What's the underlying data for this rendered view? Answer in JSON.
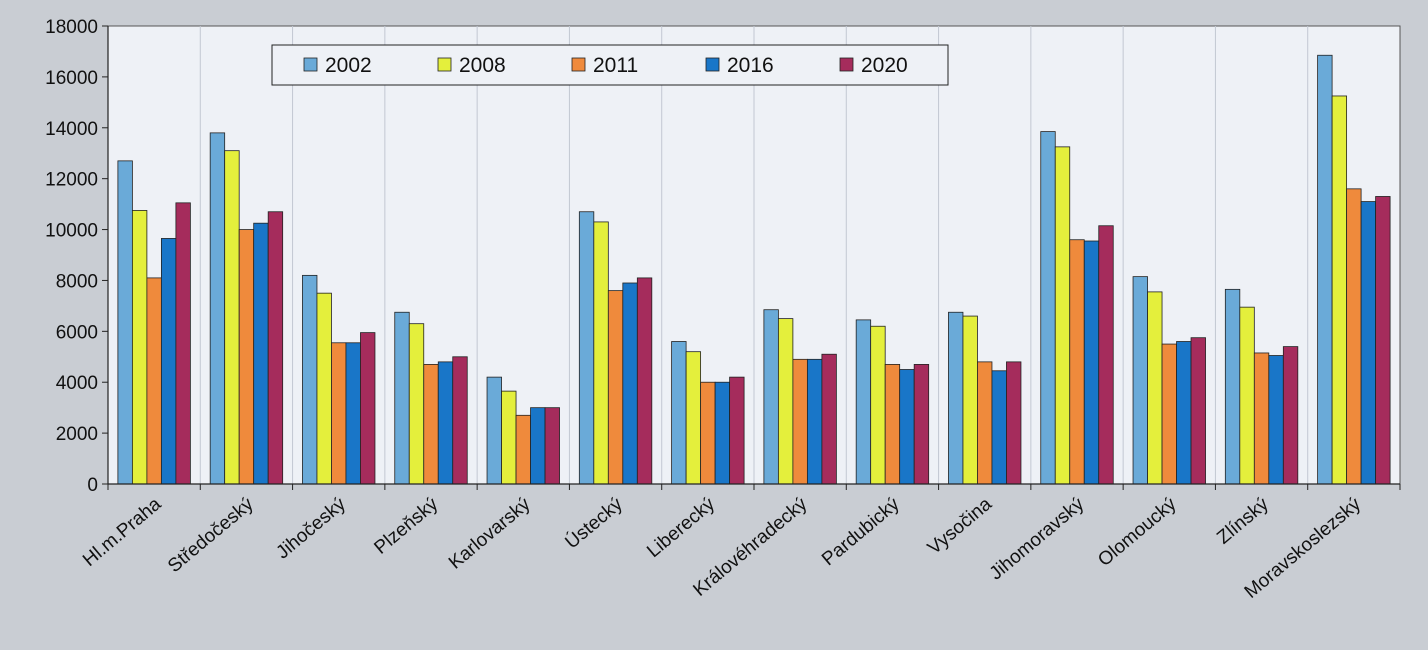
{
  "chart_data": {
    "type": "bar",
    "title": "",
    "xlabel": "",
    "ylabel": "",
    "ylim": [
      0,
      18000
    ],
    "yticks": [
      0,
      2000,
      4000,
      6000,
      8000,
      10000,
      12000,
      14000,
      16000,
      18000
    ],
    "grid": "vertical",
    "legend_position": "top",
    "categories": [
      "Hl.m.Praha",
      "Středočeský",
      "Jihočeský",
      "Plzeňský",
      "Karlovarský",
      "Ústecký",
      "Liberecký",
      "Královéhradecký",
      "Pardubický",
      "Vysočina",
      "Jihomoravský",
      "Olomoucký",
      "Zlínský",
      "Moravskoslezský"
    ],
    "series": [
      {
        "name": "2002",
        "color": "#6aaad8",
        "values": [
          12700,
          13800,
          8200,
          6750,
          4200,
          10700,
          5600,
          6850,
          6450,
          6750,
          13850,
          8150,
          7650,
          16850
        ]
      },
      {
        "name": "2008",
        "color": "#e4ef3c",
        "values": [
          10750,
          13100,
          7500,
          6300,
          3650,
          10300,
          5200,
          6500,
          6200,
          6600,
          13250,
          7550,
          6950,
          15250
        ]
      },
      {
        "name": "2011",
        "color": "#ef8a3c",
        "values": [
          8100,
          10000,
          5550,
          4700,
          2700,
          7600,
          4000,
          4900,
          4700,
          4800,
          9600,
          5500,
          5150,
          11600
        ]
      },
      {
        "name": "2016",
        "color": "#1976c8",
        "values": [
          9650,
          10250,
          5550,
          4800,
          3000,
          7900,
          4000,
          4900,
          4500,
          4450,
          9550,
          5600,
          5050,
          11100
        ]
      },
      {
        "name": "2020",
        "color": "#a52c5c",
        "values": [
          11050,
          10700,
          5950,
          5000,
          3000,
          8100,
          4200,
          5100,
          4700,
          4800,
          10150,
          5750,
          5400,
          11300
        ]
      }
    ]
  }
}
